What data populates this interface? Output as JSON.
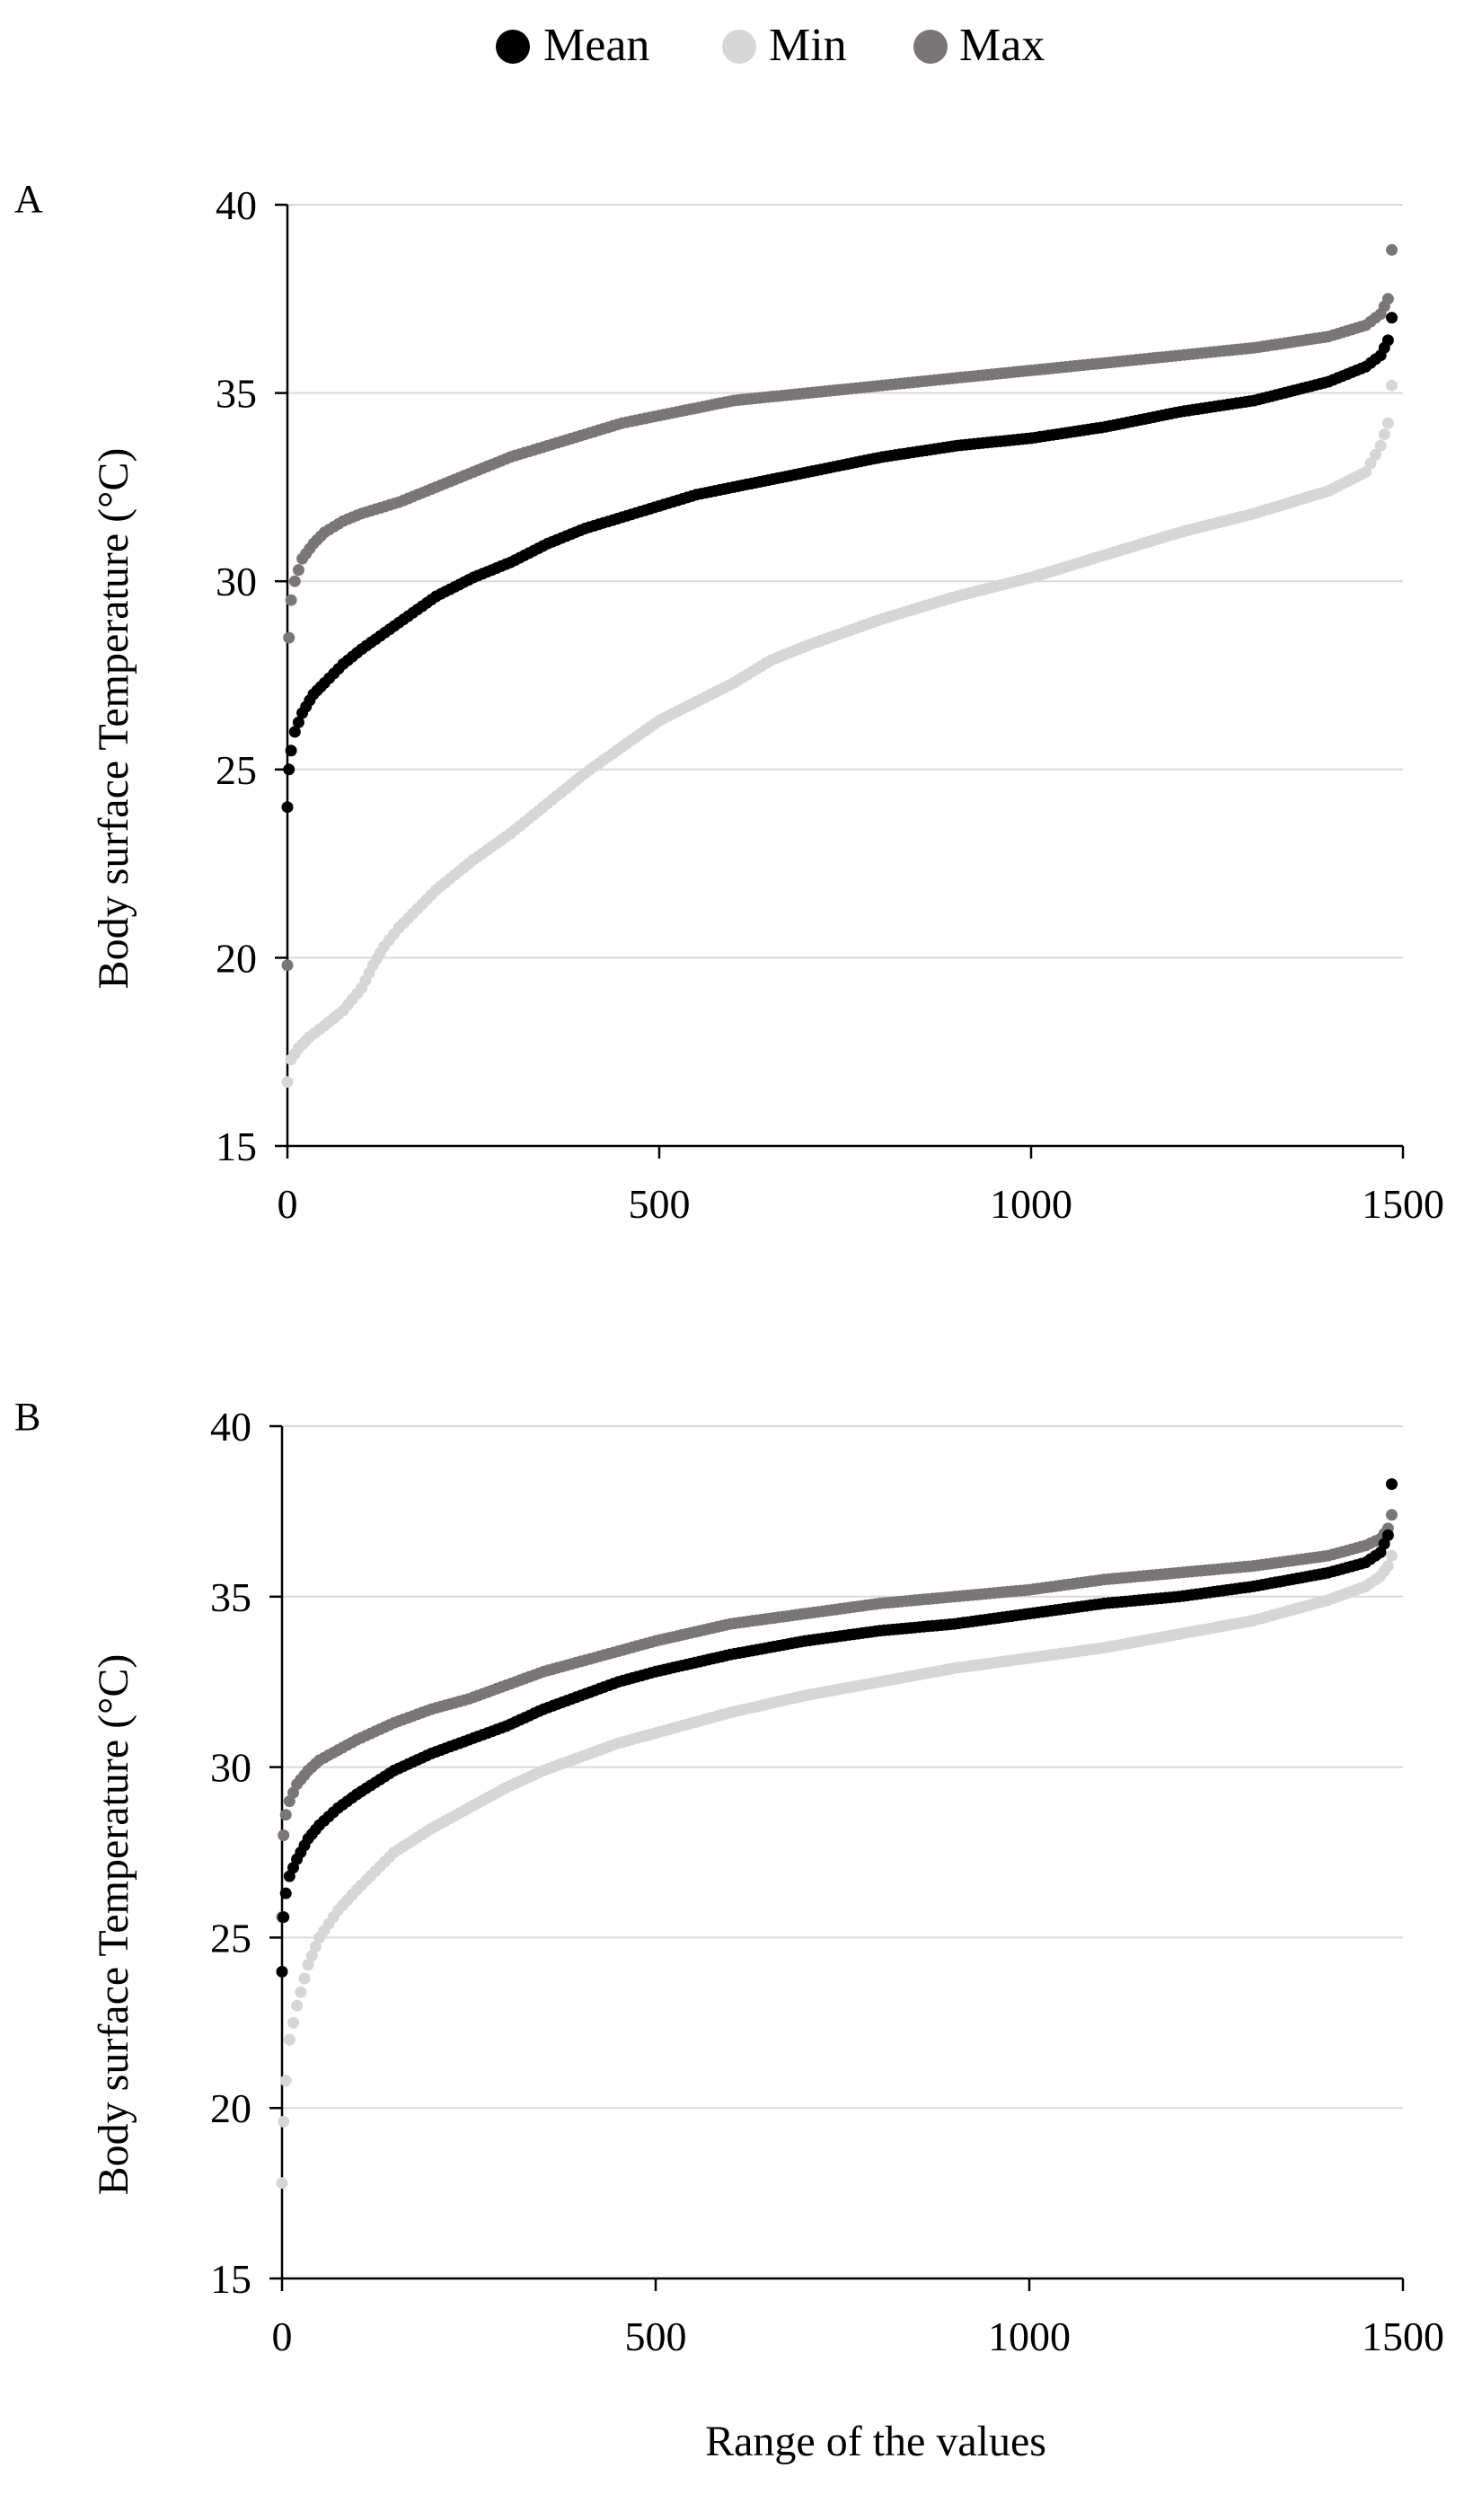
{
  "legend": {
    "items": [
      {
        "label": "Mean",
        "color": "#000000"
      },
      {
        "label": "Min",
        "color": "#d6d6d6"
      },
      {
        "label": "Max",
        "color": "#7a7577"
      }
    ]
  },
  "chart_data": [
    {
      "type": "scatter",
      "panel_label": "A",
      "ylabel": "Body surface Temperature (°C)",
      "xlabel": "",
      "xlim": [
        0,
        1500
      ],
      "ylim": [
        15,
        40
      ],
      "xticks": [
        "0",
        "500",
        "1000",
        "1500"
      ],
      "yticks": [
        "15",
        "20",
        "25",
        "30",
        "35",
        "40"
      ],
      "grid": "horizontal",
      "series": [
        {
          "name": "Mean",
          "color": "#000000",
          "x": [
            0,
            2,
            5,
            10,
            20,
            35,
            50,
            75,
            100,
            150,
            200,
            250,
            300,
            350,
            400,
            450,
            500,
            550,
            600,
            700,
            800,
            900,
            1000,
            1100,
            1200,
            1300,
            1400,
            1450,
            1470,
            1480,
            1485
          ],
          "y": [
            24.0,
            25.0,
            25.5,
            26.0,
            26.5,
            27.0,
            27.3,
            27.8,
            28.2,
            28.9,
            29.6,
            30.1,
            30.5,
            31.0,
            31.4,
            31.7,
            32.0,
            32.3,
            32.5,
            32.9,
            33.3,
            33.6,
            33.8,
            34.1,
            34.5,
            34.8,
            35.3,
            35.7,
            36.0,
            36.4,
            37.0
          ]
        },
        {
          "name": "Min",
          "color": "#d6d6d6",
          "x": [
            0,
            5,
            15,
            30,
            50,
            75,
            100,
            115,
            130,
            150,
            200,
            250,
            300,
            350,
            400,
            450,
            500,
            550,
            600,
            650,
            700,
            800,
            900,
            1000,
            1100,
            1200,
            1300,
            1400,
            1450,
            1470,
            1480,
            1485
          ],
          "y": [
            16.7,
            17.3,
            17.6,
            17.9,
            18.2,
            18.6,
            19.2,
            19.8,
            20.3,
            20.8,
            21.8,
            22.6,
            23.3,
            24.1,
            24.9,
            25.6,
            26.3,
            26.8,
            27.3,
            27.9,
            28.3,
            29.0,
            29.6,
            30.1,
            30.7,
            31.3,
            31.8,
            32.4,
            32.9,
            33.6,
            34.2,
            35.2
          ]
        },
        {
          "name": "Max",
          "color": "#7a7577",
          "x": [
            0,
            2,
            5,
            10,
            20,
            35,
            50,
            75,
            100,
            150,
            200,
            250,
            300,
            350,
            400,
            450,
            500,
            600,
            700,
            800,
            900,
            1000,
            1100,
            1200,
            1300,
            1400,
            1450,
            1470,
            1480,
            1485
          ],
          "y": [
            19.8,
            28.5,
            29.5,
            30.0,
            30.6,
            31.0,
            31.3,
            31.6,
            31.8,
            32.1,
            32.5,
            32.9,
            33.3,
            33.6,
            33.9,
            34.2,
            34.4,
            34.8,
            35.0,
            35.2,
            35.4,
            35.6,
            35.8,
            36.0,
            36.2,
            36.5,
            36.8,
            37.1,
            37.5,
            38.8
          ]
        }
      ]
    },
    {
      "type": "scatter",
      "panel_label": "B",
      "ylabel": "Body surface Temperature (°C)",
      "xlabel": "Range of the values",
      "xlim": [
        0,
        1500
      ],
      "ylim": [
        15,
        40
      ],
      "xticks": [
        "0",
        "500",
        "1000",
        "1500"
      ],
      "yticks": [
        "15",
        "20",
        "25",
        "30",
        "35",
        "40"
      ],
      "grid": "horizontal",
      "series": [
        {
          "name": "Mean",
          "color": "#000000",
          "x": [
            0,
            2,
            5,
            10,
            20,
            35,
            50,
            75,
            100,
            150,
            200,
            250,
            300,
            350,
            400,
            450,
            500,
            600,
            700,
            800,
            900,
            1000,
            1100,
            1200,
            1300,
            1400,
            1450,
            1470,
            1480,
            1485
          ],
          "y": [
            24.0,
            25.6,
            26.3,
            26.8,
            27.3,
            27.9,
            28.3,
            28.8,
            29.2,
            29.9,
            30.4,
            30.8,
            31.2,
            31.7,
            32.1,
            32.5,
            32.8,
            33.3,
            33.7,
            34.0,
            34.2,
            34.5,
            34.8,
            35.0,
            35.3,
            35.7,
            36.0,
            36.3,
            36.8,
            38.3
          ]
        },
        {
          "name": "Min",
          "color": "#d6d6d6",
          "x": [
            0,
            2,
            5,
            10,
            20,
            35,
            50,
            75,
            100,
            150,
            200,
            250,
            300,
            350,
            400,
            450,
            500,
            600,
            700,
            800,
            900,
            1000,
            1100,
            1200,
            1300,
            1400,
            1450,
            1470,
            1480,
            1485
          ],
          "y": [
            17.8,
            19.6,
            20.8,
            22.0,
            23.0,
            24.2,
            25.0,
            25.8,
            26.4,
            27.5,
            28.2,
            28.8,
            29.4,
            29.9,
            30.3,
            30.7,
            31.0,
            31.6,
            32.1,
            32.5,
            32.9,
            33.2,
            33.5,
            33.9,
            34.3,
            34.9,
            35.3,
            35.6,
            35.9,
            36.2
          ]
        },
        {
          "name": "Max",
          "color": "#7a7577",
          "x": [
            0,
            2,
            5,
            10,
            20,
            35,
            50,
            75,
            100,
            150,
            200,
            250,
            300,
            350,
            400,
            450,
            500,
            600,
            700,
            800,
            900,
            1000,
            1100,
            1200,
            1300,
            1400,
            1450,
            1470,
            1480,
            1485
          ],
          "y": [
            25.6,
            28.0,
            28.6,
            29.0,
            29.5,
            29.9,
            30.2,
            30.5,
            30.8,
            31.3,
            31.7,
            32.0,
            32.4,
            32.8,
            33.1,
            33.4,
            33.7,
            34.2,
            34.5,
            34.8,
            35.0,
            35.2,
            35.5,
            35.7,
            35.9,
            36.2,
            36.5,
            36.7,
            37.0,
            37.4
          ]
        }
      ]
    }
  ]
}
